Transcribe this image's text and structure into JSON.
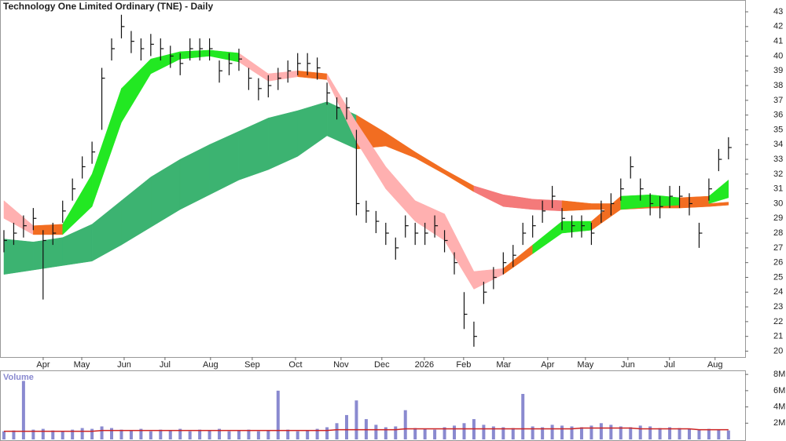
{
  "chart_data": [
    {
      "type": "ohlc",
      "title": "Technology One Limited Ordinary (TNE) - Daily",
      "color": "#111111",
      "high": [
        28.2,
        28.7,
        29.2,
        29.7,
        28.2,
        28.7,
        30.2,
        31.7,
        33.2,
        34.2,
        39.2,
        41.2,
        42.8,
        41.7,
        41.2,
        41.5,
        41.2,
        40.7,
        40.2,
        41.2,
        41.2,
        41.2,
        39.7,
        40.2,
        40.5,
        39.2,
        38.5,
        38.7,
        39.2,
        39.7,
        40.2,
        40.2,
        39.9,
        38.2,
        37.2,
        37.2,
        35.0,
        30.2,
        29.5,
        28.7,
        27.7,
        29.2,
        28.7,
        28.7,
        29.2,
        28.2,
        26.7,
        24.0,
        22.0,
        24.7,
        25.7,
        26.7,
        27.2,
        28.7,
        29.2,
        30.2,
        31.2,
        29.7,
        29.2,
        29.2,
        28.7,
        30.2,
        30.7,
        31.7,
        33.2,
        31.7,
        30.7,
        30.5,
        31.2,
        31.2,
        30.7,
        28.7,
        31.7,
        33.7,
        34.5
      ],
      "low": [
        26.7,
        27.2,
        27.7,
        28.2,
        23.5,
        27.2,
        28.7,
        30.2,
        31.7,
        32.7,
        35.0,
        39.7,
        41.2,
        40.2,
        39.7,
        40.0,
        39.7,
        39.2,
        38.7,
        39.7,
        39.7,
        39.7,
        38.2,
        38.7,
        39.0,
        37.7,
        37.0,
        37.2,
        37.7,
        38.2,
        38.7,
        38.7,
        38.4,
        36.7,
        35.7,
        35.7,
        29.2,
        28.7,
        28.0,
        27.2,
        26.2,
        27.7,
        27.2,
        27.2,
        27.7,
        26.7,
        25.2,
        21.5,
        20.3,
        23.2,
        24.2,
        25.2,
        25.7,
        27.2,
        27.7,
        28.7,
        29.7,
        28.2,
        27.7,
        27.7,
        27.2,
        28.7,
        29.2,
        30.2,
        31.7,
        30.2,
        29.2,
        29.0,
        29.7,
        29.7,
        29.2,
        27.0,
        30.2,
        32.2,
        33.0
      ],
      "close": [
        27.5,
        28,
        28.5,
        29,
        27.5,
        28,
        29.5,
        31,
        32.5,
        33.5,
        38.5,
        40.5,
        42,
        41,
        40.5,
        40.8,
        40.5,
        40,
        39.5,
        40.5,
        40.5,
        40.5,
        39,
        39.5,
        39.8,
        38.5,
        37.8,
        38,
        38.5,
        39,
        39.5,
        39.5,
        39.2,
        37.5,
        36.5,
        36.5,
        30,
        29.5,
        28.8,
        28,
        27,
        28.5,
        28,
        28,
        28.5,
        27.5,
        26,
        22.5,
        21,
        24,
        25,
        26,
        26.5,
        28,
        28.5,
        29.5,
        30.5,
        29,
        28.5,
        28.5,
        28,
        29.5,
        30,
        31,
        32.5,
        31,
        30,
        29.8,
        30.5,
        30.5,
        30,
        28,
        31,
        33,
        33.8
      ],
      "bands": [
        {
          "x": [
            0,
            3,
            6,
            9,
            12,
            15,
            18,
            21,
            24,
            27,
            30,
            33,
            36,
            39,
            42,
            45,
            48,
            51,
            54,
            57,
            60,
            63,
            66,
            69,
            72,
            74
          ],
          "upper": [
            27.6,
            27.4,
            27.7,
            28.6,
            30.2,
            31.8,
            33.0,
            34.0,
            34.9,
            35.8,
            36.3,
            36.9,
            36.0,
            34.8,
            33.5,
            32.3,
            31.2,
            30.6,
            30.3,
            30.2,
            30.0,
            30.0,
            30.0,
            30.0,
            30.0,
            30.1
          ],
          "lower": [
            25.2,
            25.5,
            25.8,
            26.1,
            27.2,
            28.4,
            29.6,
            30.6,
            31.6,
            32.3,
            33.2,
            34.6,
            33.7,
            33.9,
            33.1,
            32.0,
            30.8,
            29.8,
            29.6,
            29.5,
            29.6,
            29.6,
            29.7,
            29.7,
            29.8,
            29.9
          ],
          "colors": [
            "#3cb371",
            "#3cb371",
            "#3cb371",
            "#3cb371",
            "#3cb371",
            "#3cb371",
            "#3cb371",
            "#3cb371",
            "#3cb371",
            "#3cb371",
            "#3cb371",
            "#3cb371",
            "#f26d21",
            "#f26d21",
            "#f26d21",
            "#f26d21",
            "#f47a7a",
            "#f47a7a",
            "#f47a7a",
            "#f26d21",
            "#f26d21",
            "#f26d21",
            "#f26d21",
            "#f26d21",
            "#f26d21",
            "#f26d21"
          ]
        },
        {
          "x": [
            0,
            3,
            6,
            9,
            12,
            15,
            18,
            21,
            24,
            27,
            30,
            33,
            36,
            39,
            42,
            45,
            48,
            51,
            54,
            57,
            60,
            63,
            66,
            69,
            72,
            74
          ],
          "upper": [
            30.2,
            28.5,
            28.6,
            32.0,
            37.8,
            39.8,
            40.3,
            40.4,
            40.2,
            38.8,
            39.0,
            38.8,
            35.5,
            32.5,
            30.2,
            29.3,
            25.4,
            25.6,
            27.2,
            28.8,
            28.8,
            30.5,
            30.6,
            30.4,
            30.5,
            31.6
          ],
          "lower": [
            29.0,
            27.9,
            27.9,
            29.8,
            35.5,
            38.8,
            39.8,
            40.0,
            39.6,
            38.3,
            38.6,
            38.4,
            34.2,
            31.0,
            28.8,
            27.5,
            24.2,
            25.2,
            26.6,
            28.0,
            28.2,
            29.6,
            29.8,
            29.9,
            30.0,
            30.4
          ],
          "colors": [
            "#ffb0b0",
            "#f26d21",
            "#22e822",
            "#22e822",
            "#22e822",
            "#22e822",
            "#22e822",
            "#22e822",
            "#ffb0b0",
            "#ffb0b0",
            "#f26d21",
            "#ffb0b0",
            "#ffb0b0",
            "#ffb0b0",
            "#ffb0b0",
            "#ffb0b0",
            "#ffb0b0",
            "#f26d21",
            "#22e822",
            "#22e822",
            "#f26d21",
            "#22e822",
            "#22e822",
            "#f26d21",
            "#22e822",
            "#22e822"
          ]
        }
      ],
      "xlim": [
        -0.4,
        75.7
      ],
      "xticks": [
        {
          "value": 4.01,
          "label": "Apr"
        },
        {
          "value": 7.95,
          "label": "May"
        },
        {
          "value": 12.28,
          "label": "Jun"
        },
        {
          "value": 16.45,
          "label": "Jul"
        },
        {
          "value": 21.1,
          "label": "Aug"
        },
        {
          "value": 25.36,
          "label": "Sep"
        },
        {
          "value": 29.78,
          "label": "Oct"
        },
        {
          "value": 34.43,
          "label": "Nov"
        },
        {
          "value": 38.6,
          "label": "Dec"
        },
        {
          "value": 42.94,
          "label": "2026"
        },
        {
          "value": 46.95,
          "label": "Feb"
        },
        {
          "value": 51.04,
          "label": "Mar"
        },
        {
          "value": 55.54,
          "label": "Apr"
        },
        {
          "value": 59.39,
          "label": "May"
        },
        {
          "value": 63.73,
          "label": "Jun"
        },
        {
          "value": 67.98,
          "label": "Jul"
        },
        {
          "value": 72.63,
          "label": "Aug"
        }
      ],
      "ylim": [
        19.6,
        43.8
      ],
      "yticks": [
        20,
        21,
        22,
        23,
        24,
        25,
        26,
        27,
        28,
        29,
        30,
        31,
        32,
        33,
        34,
        35,
        36,
        37,
        38,
        39,
        40,
        41,
        42,
        43
      ]
    },
    {
      "type": "bar",
      "title": "Volume",
      "color": "#8a8ad0",
      "values": [
        1.0,
        1.1,
        7.2,
        1.2,
        1.3,
        1.1,
        1.0,
        1.2,
        1.4,
        1.3,
        1.6,
        1.4,
        1.2,
        1.1,
        1.3,
        1.0,
        1.2,
        1.1,
        1.3,
        1.0,
        1.2,
        1.1,
        1.3,
        1.0,
        1.1,
        1.2,
        1.0,
        1.1,
        6.0,
        1.2,
        1.0,
        1.1,
        1.3,
        1.5,
        2.0,
        3.0,
        4.8,
        2.5,
        1.8,
        1.5,
        1.6,
        3.6,
        1.4,
        1.3,
        1.2,
        1.5,
        1.7,
        2.0,
        2.5,
        1.8,
        1.6,
        1.5,
        1.4,
        5.6,
        1.6,
        1.5,
        1.8,
        1.7,
        1.6,
        1.5,
        1.7,
        2.0,
        1.8,
        1.6,
        1.5,
        1.7,
        1.6,
        1.4,
        1.5,
        1.4,
        1.3,
        1.2,
        1.3,
        1.2,
        1.1
      ],
      "average": {
        "color": "#cc2222",
        "values": [
          1.0,
          1.0,
          1.0,
          1.0,
          1.0,
          1.0,
          1.0,
          1.0,
          1.0,
          1.0,
          1.1,
          1.1,
          1.1,
          1.1,
          1.1,
          1.1,
          1.1,
          1.1,
          1.1,
          1.1,
          1.1,
          1.1,
          1.1,
          1.1,
          1.1,
          1.1,
          1.1,
          1.1,
          1.1,
          1.1,
          1.1,
          1.1,
          1.1,
          1.1,
          1.2,
          1.2,
          1.2,
          1.2,
          1.2,
          1.2,
          1.2,
          1.3,
          1.3,
          1.3,
          1.3,
          1.3,
          1.3,
          1.3,
          1.3,
          1.3,
          1.3,
          1.3,
          1.3,
          1.3,
          1.3,
          1.3,
          1.3,
          1.3,
          1.3,
          1.4,
          1.4,
          1.4,
          1.4,
          1.4,
          1.4,
          1.3,
          1.3,
          1.3,
          1.3,
          1.3,
          1.3,
          1.2,
          1.2,
          1.2,
          1.2
        ]
      },
      "xlim": [
        -0.4,
        75.7
      ],
      "ylim": [
        0,
        8.4
      ],
      "yticks": [
        {
          "value": 2,
          "label": "2M"
        },
        {
          "value": 4,
          "label": "4M"
        },
        {
          "value": 6,
          "label": "6M"
        },
        {
          "value": 8,
          "label": "8M"
        }
      ]
    }
  ]
}
